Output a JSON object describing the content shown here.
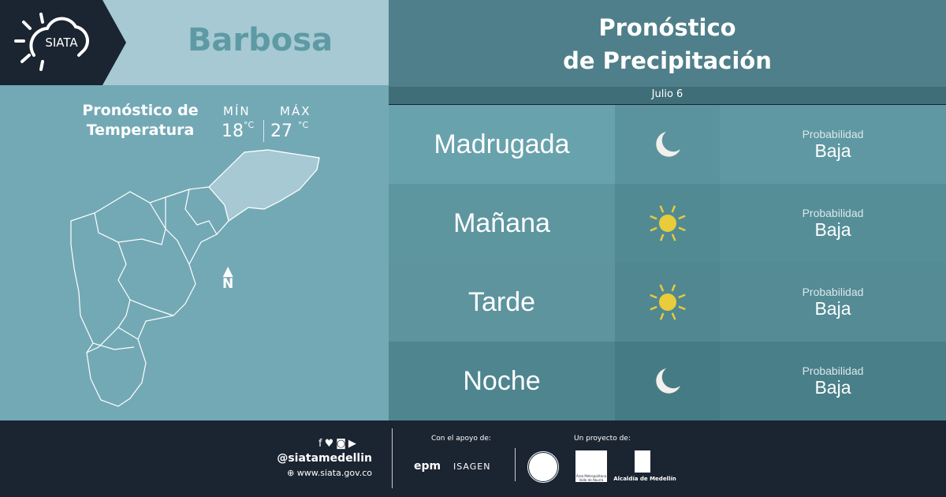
{
  "brand": {
    "logo_text": "SIATA"
  },
  "location": "Barbosa",
  "temperature": {
    "title_line1": "Pronóstico de",
    "title_line2": "Temperatura",
    "min_label": "MÍN",
    "max_label": "MÁX",
    "min_value": "18",
    "max_value": "27",
    "unit": "°C"
  },
  "map": {
    "north_label": "N"
  },
  "precipitation": {
    "title_line1": "Pronóstico",
    "title_line2": "de Precipitación",
    "date": "Julio 6",
    "rows": [
      {
        "period": "Madrugada",
        "icon": "moon-icon",
        "prob_label": "Probabilidad",
        "prob_value": "Baja"
      },
      {
        "period": "Mañana",
        "icon": "sun-icon",
        "prob_label": "Probabilidad",
        "prob_value": "Baja"
      },
      {
        "period": "Tarde",
        "icon": "sun-icon",
        "prob_label": "Probabilidad",
        "prob_value": "Baja"
      },
      {
        "period": "Noche",
        "icon": "moon-icon",
        "prob_label": "Probabilidad",
        "prob_value": "Baja"
      }
    ]
  },
  "footer": {
    "handle": "@siatamedellin",
    "website": "www.siata.gov.co",
    "support_label": "Con el apoyo de:",
    "project_label": "Un proyecto de:",
    "sponsors": [
      "epm",
      "ISAGEN"
    ],
    "partners": [
      "Área Metropolitana Valle de Aburrá",
      "Alcaldía de Medellín"
    ]
  },
  "colors": {
    "dark": "#1b2431",
    "sun": "#e8cc3a",
    "moon": "#f2f0ec",
    "city": "#5e9aa3"
  }
}
